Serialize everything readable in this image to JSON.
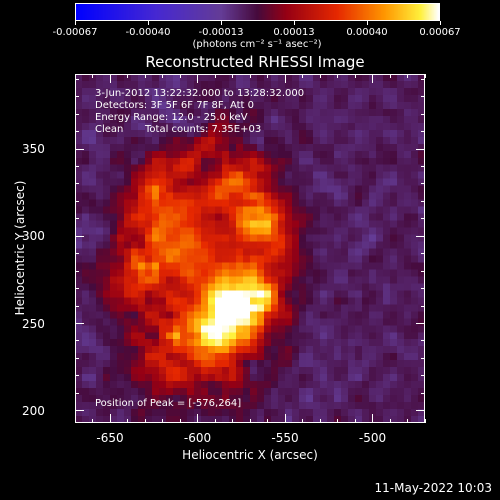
{
  "colorbar": {
    "vmin": -0.00067,
    "vmax": 0.00067,
    "ticks": [
      "-0.00067",
      "-0.00040",
      "-0.00013",
      "0.00013",
      "0.00040",
      "0.00067"
    ],
    "units": "(photons cm⁻² s⁻¹ asec⁻²)"
  },
  "chart_data": {
    "type": "heatmap",
    "title": "Reconstructed RHESSI Image",
    "xlabel": "Heliocentric X (arcsec)",
    "ylabel": "Heliocentric Y (arcsec)",
    "xlim": [
      -670,
      -470
    ],
    "ylim": [
      193,
      393
    ],
    "xticks": [
      "-650",
      "-600",
      "-550",
      "-500"
    ],
    "yticks": [
      "200",
      "250",
      "300",
      "350"
    ],
    "colormap": "blue-purple-red-yellow-white",
    "peak": [
      -576,
      264
    ],
    "source_features": [
      {
        "x": -576,
        "y": 264,
        "amplitude": 1.0
      },
      {
        "x": -590,
        "y": 248,
        "amplitude": 0.65
      },
      {
        "x": -603,
        "y": 292,
        "amplitude": 0.55
      },
      {
        "x": -620,
        "y": 320,
        "amplitude": 0.45
      },
      {
        "x": -575,
        "y": 325,
        "amplitude": 0.45
      },
      {
        "x": -560,
        "y": 300,
        "amplitude": 0.35
      },
      {
        "x": -635,
        "y": 275,
        "amplitude": 0.35
      },
      {
        "x": -615,
        "y": 225,
        "amplitude": 0.3
      }
    ]
  },
  "annotations": {
    "time_range": "3-Jun-2012 13:22:32.000 to 13:28:32.000",
    "detectors": "Detectors: 3F 5F 6F 7F 8F, Att 0",
    "energy_range": "Energy Range: 12.0 - 25.0 keV",
    "method_label": "Clean",
    "total_counts": "Total counts: 7.35E+03",
    "peak_position": "Position of Peak = [-576,264]"
  },
  "footer": {
    "date": "11-May-2022 10:03"
  }
}
